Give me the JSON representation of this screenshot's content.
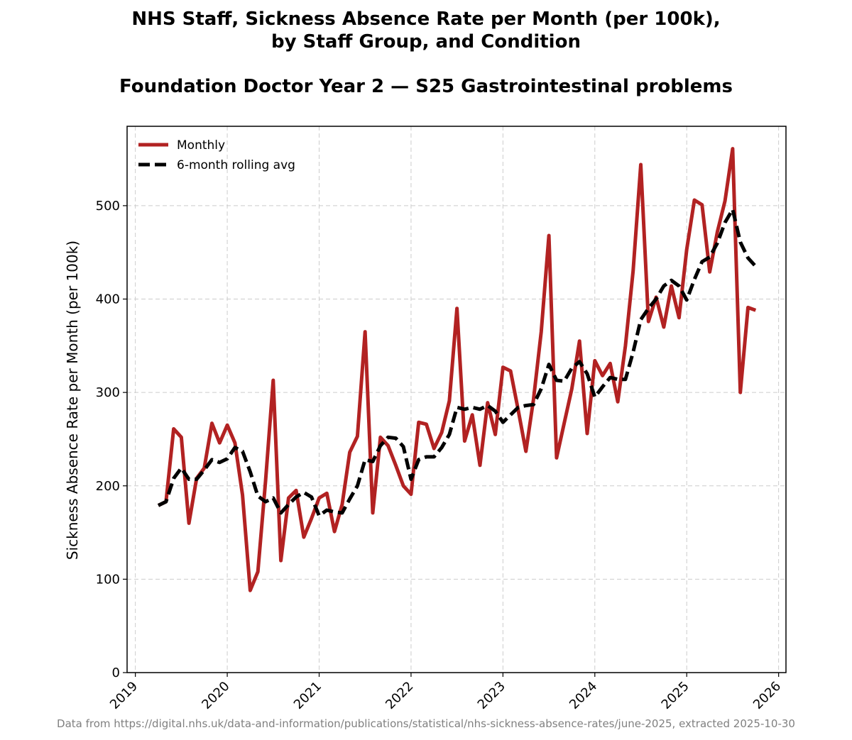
{
  "chart_data": {
    "type": "line",
    "title_lines": [
      "NHS Staff, Sickness Absence Rate per Month (per 100k),",
      "by Staff Group, and Condition"
    ],
    "subtitle": "Foundation Doctor Year 2 — S25 Gastrointestinal problems",
    "xlabel": "",
    "ylabel": "Sickness Absence Rate per Month (per 100k)",
    "ylim": [
      0,
      585
    ],
    "xlim": [
      2018.91,
      2026.08
    ],
    "yticks": [
      0,
      100,
      200,
      300,
      400,
      500
    ],
    "ytick_labels": [
      "0",
      "100",
      "200",
      "300",
      "400",
      "500"
    ],
    "xticks": [
      2019,
      2020,
      2021,
      2022,
      2023,
      2024,
      2025,
      2026
    ],
    "xtick_labels": [
      "2019",
      "2020",
      "2021",
      "2022",
      "2023",
      "2024",
      "2025",
      "2026"
    ],
    "grid": true,
    "legend_position": "upper-left",
    "colors": {
      "monthly": "#b22222",
      "rolling": "#000000",
      "footer": "#808080"
    },
    "series": [
      {
        "name": "Monthly",
        "style": "solid",
        "start": [
          2019,
          4
        ],
        "values": [
          179,
          183,
          261,
          252,
          160,
          208,
          219,
          267,
          246,
          265,
          246,
          190,
          88,
          108,
          205,
          313,
          120,
          187,
          195,
          145,
          165,
          187,
          192,
          151,
          180,
          236,
          253,
          365,
          171,
          252,
          243,
          222,
          200,
          191,
          268,
          266,
          240,
          257,
          291,
          390,
          248,
          276,
          222,
          289,
          255,
          327,
          323,
          281,
          237,
          293,
          365,
          468,
          230,
          267,
          304,
          355,
          256,
          334,
          318,
          331,
          290,
          350,
          430,
          544,
          376,
          402,
          370,
          414,
          380,
          453,
          506,
          501,
          429,
          472,
          505,
          561,
          300,
          391,
          388
        ]
      },
      {
        "name": "6-month rolling avg",
        "style": "dashed",
        "start": [
          2019,
          4
        ],
        "values": [
          179,
          183,
          208,
          219,
          207,
          207,
          217,
          228,
          225,
          229,
          241,
          237,
          215,
          189,
          183,
          187,
          171,
          180,
          188,
          193,
          188,
          168,
          174,
          172,
          171,
          186,
          200,
          228,
          226,
          243,
          252,
          251,
          242,
          207,
          228,
          231,
          231,
          241,
          255,
          284,
          282,
          284,
          282,
          286,
          280,
          268,
          276,
          284,
          286,
          287,
          304,
          330,
          313,
          312,
          326,
          333,
          320,
          295,
          306,
          316,
          314,
          314,
          343,
          378,
          390,
          400,
          414,
          420,
          414,
          399,
          421,
          440,
          445,
          460,
          482,
          496,
          461,
          444,
          435
        ]
      }
    ],
    "footer": "Data from https://digital.nhs.uk/data-and-information/publications/statistical/nhs-sickness-absence-rates/june-2025, extracted 2025-10-30"
  }
}
